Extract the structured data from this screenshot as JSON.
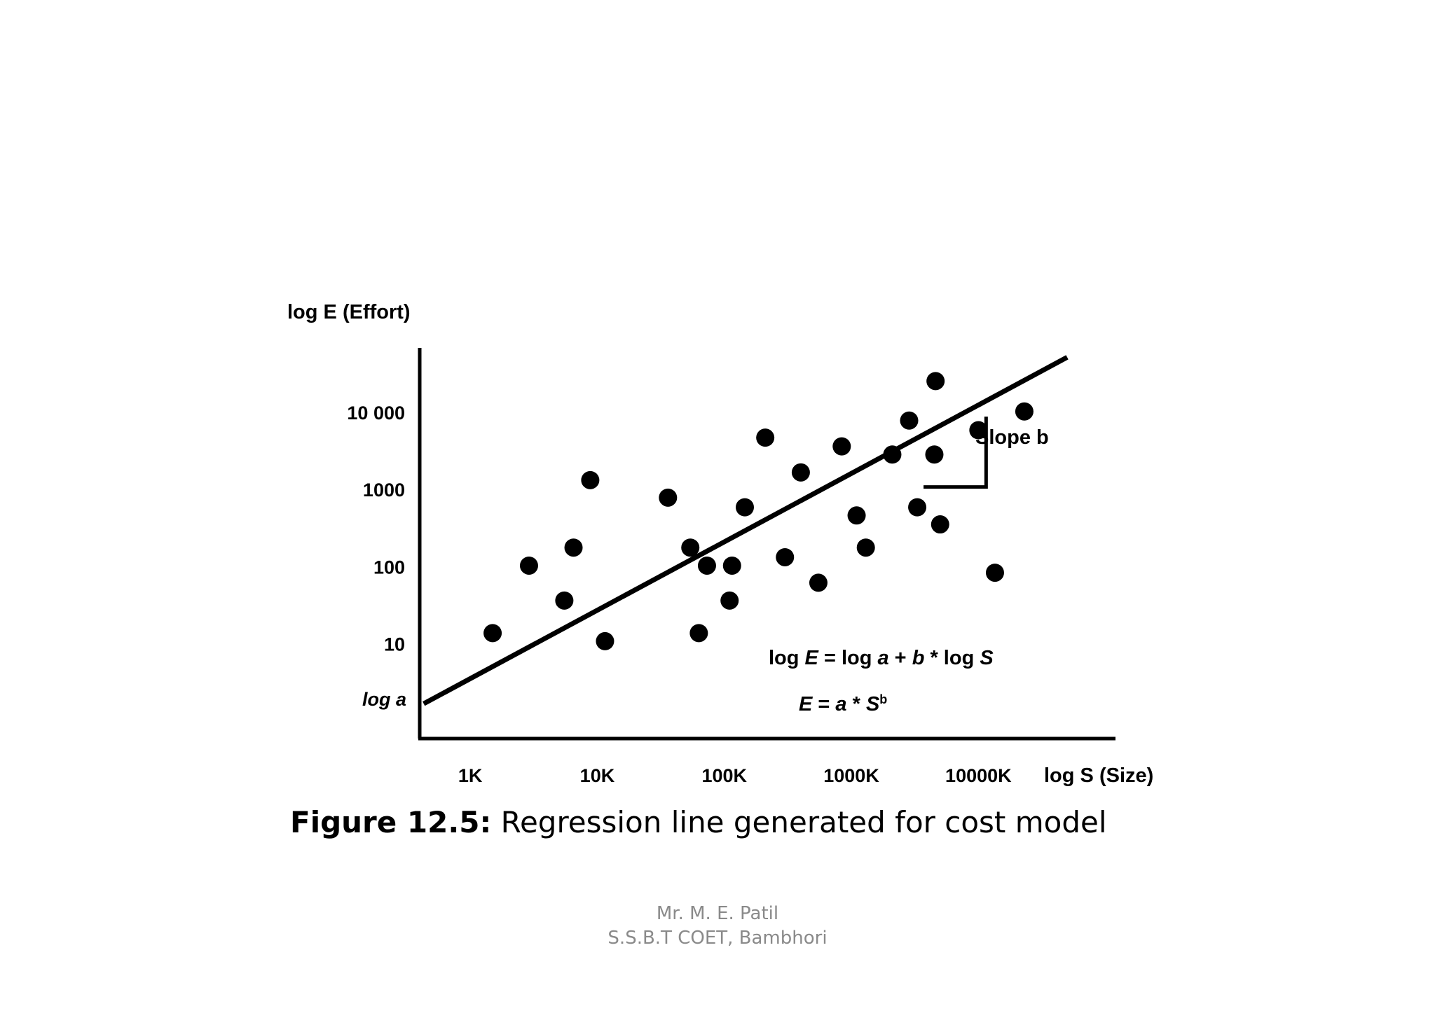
{
  "chart_data": {
    "type": "scatter",
    "title": "Figure 12.5: Regression line generated for cost model",
    "xlabel": "log S (Size)",
    "ylabel": "log E (Effort)",
    "x_scale": "log10",
    "y_scale": "log10",
    "x_ticks": [
      {
        "value": 1000,
        "label": "1K"
      },
      {
        "value": 10000,
        "label": "10K"
      },
      {
        "value": 100000,
        "label": "100K"
      },
      {
        "value": 1000000,
        "label": "1000K"
      },
      {
        "value": 10000000,
        "label": "10000K"
      }
    ],
    "y_ticks": [
      {
        "value": 10,
        "label": "10"
      },
      {
        "value": 100,
        "label": "100"
      },
      {
        "value": 1000,
        "label": "1000"
      },
      {
        "value": 10000,
        "label": "10 000"
      }
    ],
    "y_intercept_label": "log a",
    "xlim": [
      400,
      120000000
    ],
    "ylim": [
      0.6,
      70000
    ],
    "points": [
      {
        "x": 1500,
        "y": 14
      },
      {
        "x": 2900,
        "y": 105
      },
      {
        "x": 5500,
        "y": 37
      },
      {
        "x": 6500,
        "y": 180
      },
      {
        "x": 8800,
        "y": 1350
      },
      {
        "x": 11500,
        "y": 11
      },
      {
        "x": 36000,
        "y": 800
      },
      {
        "x": 54000,
        "y": 180
      },
      {
        "x": 63000,
        "y": 14
      },
      {
        "x": 73000,
        "y": 105
      },
      {
        "x": 110000,
        "y": 37
      },
      {
        "x": 115000,
        "y": 105
      },
      {
        "x": 145000,
        "y": 600
      },
      {
        "x": 210000,
        "y": 4800
      },
      {
        "x": 300000,
        "y": 135
      },
      {
        "x": 400000,
        "y": 1700
      },
      {
        "x": 550000,
        "y": 63
      },
      {
        "x": 840000,
        "y": 3700
      },
      {
        "x": 1100000,
        "y": 470
      },
      {
        "x": 1300000,
        "y": 180
      },
      {
        "x": 2100000,
        "y": 2900
      },
      {
        "x": 2850000,
        "y": 8000
      },
      {
        "x": 3300000,
        "y": 600
      },
      {
        "x": 4500000,
        "y": 2900
      },
      {
        "x": 4600000,
        "y": 26000
      },
      {
        "x": 5000000,
        "y": 360
      },
      {
        "x": 10000000,
        "y": 6000
      },
      {
        "x": 13500000,
        "y": 85
      },
      {
        "x": 23000000,
        "y": 10500
      }
    ],
    "regression_line": {
      "x": [
        430,
        50000000
      ],
      "y": [
        1.7,
        53000
      ]
    },
    "slope_marker": {
      "label": "Slope b",
      "x": [
        3700000,
        11500000
      ],
      "y": [
        1100,
        9000
      ]
    },
    "annotations": {
      "formula_log": "log E = log a + b * log S",
      "formula": "E = a * Sᵇ"
    }
  },
  "caption": {
    "number": "Figure 12.5:",
    "text": " Regression line generated for cost model"
  },
  "footer": {
    "author": "Mr. M. E. Patil",
    "institution": "S.S.B.T COET, Bambhori"
  }
}
